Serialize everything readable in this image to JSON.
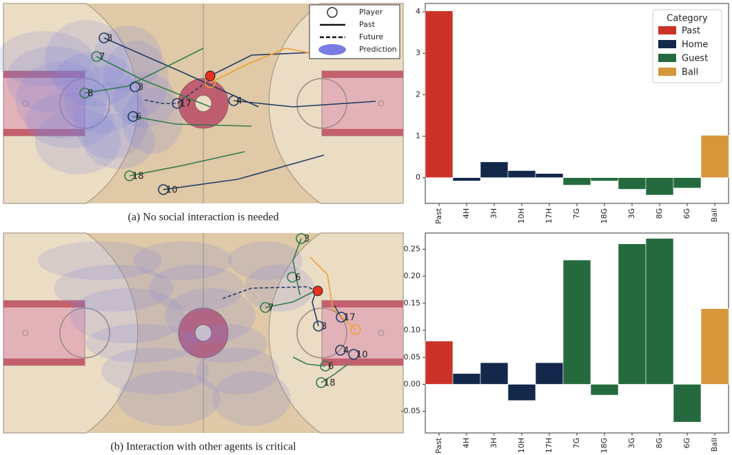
{
  "court_legend": [
    "Player",
    "Past",
    "Future",
    "Prediction"
  ],
  "panels": [
    {
      "caption": "(a) No social interaction is needed",
      "players": [
        "3",
        "7",
        "3",
        "8",
        "17",
        "4",
        "6",
        "18",
        "10"
      ]
    },
    {
      "caption": "(b) Interaction with other agents is critical",
      "players": [
        "3",
        "6",
        "7",
        "3",
        "17",
        "4",
        "10",
        "6",
        "18"
      ]
    }
  ],
  "chart_data": [
    {
      "type": "bar",
      "legend_title": "Category",
      "legend": true,
      "legend_position": "upper right",
      "categories": [
        "Past",
        "4H",
        "3H",
        "10H",
        "17H",
        "7G",
        "18G",
        "3G",
        "8G",
        "6G",
        "Ball"
      ],
      "series": [
        {
          "name": "Past",
          "color": "#cc3328",
          "values": [
            4.02,
            null,
            null,
            null,
            null,
            null,
            null,
            null,
            null,
            null,
            null
          ]
        },
        {
          "name": "Home",
          "color": "#13284a",
          "values": [
            null,
            -0.08,
            0.38,
            0.17,
            0.1,
            null,
            null,
            null,
            null,
            null,
            null
          ]
        },
        {
          "name": "Guest",
          "color": "#256a3e",
          "values": [
            null,
            null,
            null,
            null,
            null,
            -0.18,
            -0.08,
            -0.28,
            -0.42,
            -0.25,
            null
          ]
        },
        {
          "name": "Ball",
          "color": "#d6963a",
          "values": [
            null,
            null,
            null,
            null,
            null,
            null,
            null,
            null,
            null,
            null,
            1.02
          ]
        }
      ],
      "ylim": [
        -0.62,
        4.2
      ],
      "yticks": [
        0,
        1,
        2,
        3,
        4
      ]
    },
    {
      "type": "bar",
      "legend": false,
      "categories": [
        "Past",
        "4H",
        "3H",
        "10H",
        "17H",
        "7G",
        "18G",
        "3G",
        "8G",
        "6G",
        "Ball"
      ],
      "series": [
        {
          "name": "Past",
          "color": "#cc3328",
          "values": [
            0.08,
            null,
            null,
            null,
            null,
            null,
            null,
            null,
            null,
            null,
            null
          ]
        },
        {
          "name": "Home",
          "color": "#13284a",
          "values": [
            null,
            0.02,
            0.04,
            -0.03,
            0.04,
            null,
            null,
            null,
            null,
            null,
            null
          ]
        },
        {
          "name": "Guest",
          "color": "#256a3e",
          "values": [
            null,
            null,
            null,
            null,
            null,
            0.23,
            -0.02,
            0.26,
            0.27,
            -0.07,
            null
          ]
        },
        {
          "name": "Ball",
          "color": "#d6963a",
          "values": [
            null,
            null,
            null,
            null,
            null,
            null,
            null,
            null,
            null,
            null,
            0.14
          ]
        }
      ],
      "ylim": [
        -0.09,
        0.28
      ],
      "yticks": [
        {
          "value": -0.05,
          "label": "-0.05"
        },
        {
          "value": 0,
          "label": "0.00"
        },
        {
          "value": 0.05,
          "label": "0.05"
        },
        {
          "value": 0.1,
          "label": "0.10"
        },
        {
          "value": 0.15,
          "label": "0.15"
        },
        {
          "value": 0.2,
          "label": "0.20"
        },
        {
          "value": 0.25,
          "label": "0.25"
        }
      ]
    }
  ]
}
